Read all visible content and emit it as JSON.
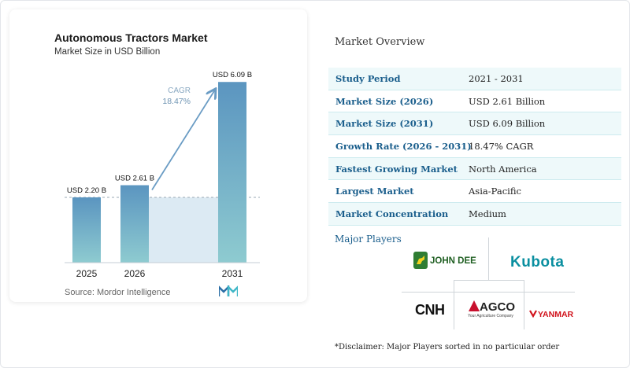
{
  "chart_data": {
    "type": "bar",
    "title": "Autonomous Tractors Market",
    "subtitle": "Market Size in USD Billion",
    "categories": [
      "2025",
      "2026",
      "2031"
    ],
    "values": [
      2.2,
      2.61,
      6.09
    ],
    "data_labels": [
      "USD 2.20 B",
      "USD 2.61 B",
      "USD 6.09 B"
    ],
    "ylim": [
      0,
      6.6
    ],
    "cagr_label": "CAGR",
    "cagr_value": "18.47%",
    "source": "Source: Mordor Intelligence",
    "colors": {
      "bar_top": "#5b95c0",
      "bar_bottom": "#8ecbd0",
      "arrow": "#6a9cc4",
      "band": "#dceaf3"
    }
  },
  "overview": {
    "title": "Market Overview",
    "rows": [
      {
        "label": "Study Period",
        "value": "2021 - 2031"
      },
      {
        "label": "Market Size (2026)",
        "value": "USD 2.61 Billion"
      },
      {
        "label": "Market Size (2031)",
        "value": "USD 6.09 Billion"
      },
      {
        "label": "Growth Rate (2026 - 2031)",
        "value": "18.47% CAGR"
      },
      {
        "label": "Fastest Growing Market",
        "value": "North America"
      },
      {
        "label": "Largest Market",
        "value": "Asia-Pacific"
      },
      {
        "label": "Market Concentration",
        "value": "Medium"
      }
    ]
  },
  "players": {
    "title": "Major Players",
    "logos": {
      "john_deere": "JOHN DEERE",
      "kubota": "Kubota",
      "cnh": "CNH",
      "agco": "AGCO",
      "agco_tagline": "Your Agriculture Company",
      "yanmar": "YANMAR"
    },
    "disclaimer": "*Disclaimer: Major Players sorted in no particular order"
  }
}
